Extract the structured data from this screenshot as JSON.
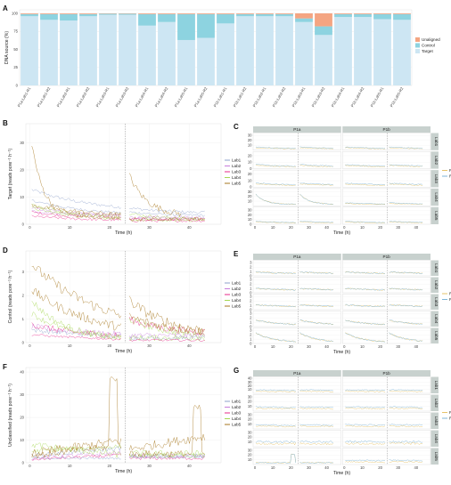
{
  "colors": {
    "unaligned": "#f4a582",
    "control": "#8dd3e0",
    "target": "#cde6f3",
    "lab1": "#8da0cb",
    "lab2": "#c77cdb",
    "lab3": "#e7298a",
    "lab4": "#a6d854",
    "lab5": "#a6761d",
    "r1": "#e6c36a",
    "r2": "#7fb6d8",
    "strip": "#c8d1ce"
  },
  "panel_labels": [
    "A",
    "B",
    "C",
    "D",
    "E",
    "F",
    "G"
  ],
  "chart_data": [
    {
      "panel": "A",
      "type": "bar",
      "stacked": true,
      "ylabel": "DNA source (%)",
      "ylim": [
        0,
        100
      ],
      "yticks": [
        "0",
        "25",
        "50",
        "75",
        "100"
      ],
      "categories": [
        "P1a-Lab1-R1",
        "P1a-Lab1-R2",
        "P1a-Lab2-R1",
        "P1a-Lab2-R2",
        "P1a-Lab3-R1",
        "P1a-Lab3-R2",
        "P1a-Lab4-R1",
        "P1a-Lab4-R2",
        "P1a-Lab5-R1",
        "P1a-Lab5-R2",
        "P1b-Lab1-R1",
        "P1b-Lab1-R2",
        "P1b-Lab2-R1",
        "P1b-Lab2-R2",
        "P1b-Lab3-R1",
        "P1b-Lab3-R2",
        "P1b-Lab4-R1",
        "P1b-Lab4-R2",
        "P1b-Lab5-R1",
        "P1b-Lab5-R2"
      ],
      "series": [
        {
          "name": "Target",
          "values": [
            96,
            91,
            90,
            96,
            98,
            98,
            83,
            88,
            63,
            66,
            86,
            96,
            96,
            96,
            88,
            70,
            95,
            95,
            92,
            91
          ]
        },
        {
          "name": "Control",
          "values": [
            3,
            8,
            9,
            3,
            1.5,
            1.5,
            16,
            11,
            36,
            33,
            13,
            3,
            3,
            3,
            5,
            12,
            4,
            4,
            7,
            8
          ]
        },
        {
          "name": "Unaligned",
          "values": [
            1,
            1,
            1,
            1,
            0.5,
            0.5,
            1,
            1,
            1,
            1,
            1,
            1,
            1,
            1,
            7,
            18,
            1,
            1,
            1,
            1
          ]
        }
      ],
      "legend_order": [
        "Unaligned",
        "Control",
        "Target"
      ],
      "legend": "right"
    },
    {
      "panel": "B",
      "type": "line",
      "xlabel": "Time (h)",
      "ylabel": "Target (reads pore⁻¹ h⁻¹)",
      "xticks": [
        "0",
        "10",
        "20",
        "30",
        "40"
      ],
      "yticks": [
        "0",
        "10",
        "20",
        "30"
      ],
      "xlim": [
        -1,
        48
      ],
      "ylim": [
        0,
        37
      ],
      "vline": 24,
      "legend_title": "",
      "series_names": [
        "Lab1",
        "Lab2",
        "Lab3",
        "Lab4",
        "Lab5"
      ]
    },
    {
      "panel": "C",
      "type": "line",
      "facets": true,
      "xlabel": "Time (h)",
      "columns": [
        "P1a",
        "P1b"
      ],
      "rows": [
        "Lab1",
        "Lab2",
        "Lab3",
        "Lab4",
        "Lab5"
      ],
      "row_yticks": [
        [
          "10",
          "20",
          "30"
        ],
        [
          "0",
          "10",
          "20"
        ],
        [
          "0",
          "10",
          "20"
        ],
        [
          "10",
          "20",
          "30"
        ],
        [
          "0",
          "10",
          "20",
          "30"
        ]
      ],
      "xticks": [
        "0",
        "10",
        "20",
        "30",
        "40"
      ],
      "vline": 24,
      "series_names": [
        "R1",
        "R2"
      ]
    },
    {
      "panel": "D",
      "type": "line",
      "xlabel": "Time (h)",
      "ylabel": "Control (reads pore⁻¹ h⁻¹)",
      "xticks": [
        "0",
        "10",
        "20",
        "30",
        "40"
      ],
      "yticks": [
        "0",
        "1",
        "2",
        "3"
      ],
      "xlim": [
        -1,
        48
      ],
      "ylim": [
        0,
        3.9
      ],
      "vline": 24,
      "series_names": [
        "Lab1",
        "Lab2",
        "Lab3",
        "Lab4",
        "Lab5"
      ]
    },
    {
      "panel": "E",
      "type": "line",
      "facets": true,
      "xlabel": "Time (h)",
      "columns": [
        "P1a",
        "P1b"
      ],
      "rows": [
        "Lab1",
        "Lab2",
        "Lab3",
        "Lab4",
        "Lab5"
      ],
      "row_yticks": [
        [
          "0",
          "1",
          "2",
          "3"
        ],
        [
          "0",
          "1",
          "2",
          "3"
        ],
        [
          "0",
          "1",
          "2",
          "3"
        ],
        [
          "0",
          "1",
          "2",
          "3"
        ],
        [
          "0",
          "1",
          "2",
          "3"
        ]
      ],
      "xticks": [
        "0",
        "10",
        "20",
        "30",
        "40"
      ],
      "vline": 24,
      "series_names": [
        "R1",
        "R2"
      ]
    },
    {
      "panel": "F",
      "type": "line",
      "xlabel": "Time (h)",
      "ylabel": "Unclassified (reads pore⁻¹ h⁻¹)",
      "xticks": [
        "0",
        "10",
        "20",
        "30",
        "40"
      ],
      "yticks": [
        "0",
        "10",
        "20",
        "30",
        "40"
      ],
      "xlim": [
        -1,
        48
      ],
      "ylim": [
        0,
        42
      ],
      "vline": 24,
      "series_names": [
        "Lab1",
        "Lab2",
        "Lab3",
        "Lab4",
        "Lab5"
      ]
    },
    {
      "panel": "G",
      "type": "line",
      "facets": true,
      "xlabel": "Time (h)",
      "columns": [
        "P1a",
        "P1b"
      ],
      "rows": [
        "Lab1",
        "Lab2",
        "Lab3",
        "Lab4",
        "Lab5"
      ],
      "row_yticks": [
        [
          "10",
          "20",
          "30",
          "40"
        ],
        [
          "10",
          "20",
          "30"
        ],
        [
          "10",
          "20",
          "30"
        ],
        [
          "10",
          "20",
          "30"
        ],
        [
          "10",
          "20",
          "30"
        ]
      ],
      "xticks": [
        "0",
        "10",
        "20",
        "30",
        "40"
      ],
      "vline": 24,
      "series_names": [
        "R1",
        "R2"
      ]
    }
  ]
}
